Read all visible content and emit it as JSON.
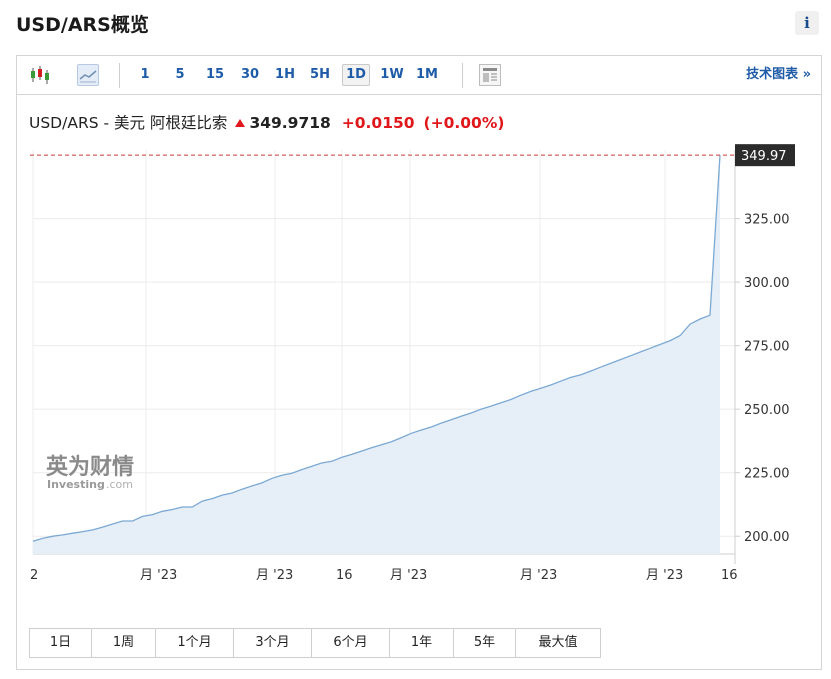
{
  "header": {
    "title": "USD/ARS概览",
    "info_label": "i"
  },
  "toolbar": {
    "timeframes": [
      "1",
      "5",
      "15",
      "30",
      "1H",
      "5H",
      "1D",
      "1W",
      "1M"
    ],
    "selected_timeframe": "1D",
    "tech_label": "技术图表 »"
  },
  "quote": {
    "name": "USD/ARS - 美元 阿根廷比索",
    "price": "349.9718",
    "change": "+0.0150",
    "change_pct": "(+0.00%)"
  },
  "watermark": {
    "brand_cn": "英为财情",
    "brand_en": "Investing",
    "brand_suffix": ".com"
  },
  "ranges": [
    "1日",
    "1周",
    "1个月",
    "3个月",
    "6个月",
    "1年",
    "5年",
    "最大值"
  ],
  "colors": {
    "line": "#7ba9d3",
    "fill": "#e6eef7",
    "up": "#e0181b",
    "label_bg": "#2b2b2b",
    "accent": "#1f5ca8"
  },
  "chart_data": {
    "type": "area",
    "ylim": [
      193,
      352
    ],
    "yticks": [
      200,
      225,
      250,
      275,
      300,
      325
    ],
    "ytick_labels": [
      "200.00",
      "225.00",
      "250.00",
      "275.00",
      "300.00",
      "325.00"
    ],
    "last_value_label": "349.97",
    "xtick_labels": [
      "2",
      "月 '23",
      "月 '23",
      "16",
      "月 '23",
      "月 '23",
      "月 '23",
      "16"
    ],
    "series": [
      {
        "values": [
          198.0,
          199.2,
          200.0,
          200.5,
          201.2,
          201.8,
          202.5,
          203.6,
          204.8,
          206.0,
          206.0,
          207.8,
          208.5,
          209.8,
          210.5,
          211.5,
          211.5,
          213.8,
          214.8,
          216.2,
          217.0,
          218.5,
          219.8,
          221.0,
          222.8,
          224.0,
          224.8,
          226.2,
          227.5,
          228.8,
          229.5,
          231.0,
          232.2,
          233.5,
          234.8,
          236.0,
          237.2,
          238.8,
          240.5,
          241.8,
          243.0,
          244.5,
          245.8,
          247.2,
          248.5,
          250.0,
          251.2,
          252.5,
          253.8,
          255.5,
          257.0,
          258.2,
          259.5,
          261.0,
          262.5,
          263.5,
          265.0,
          266.5,
          268.0,
          269.5,
          271.0,
          272.5,
          274.0,
          275.5,
          277.0,
          279.0,
          283.5,
          285.5,
          287.0,
          349.97
        ]
      }
    ]
  }
}
